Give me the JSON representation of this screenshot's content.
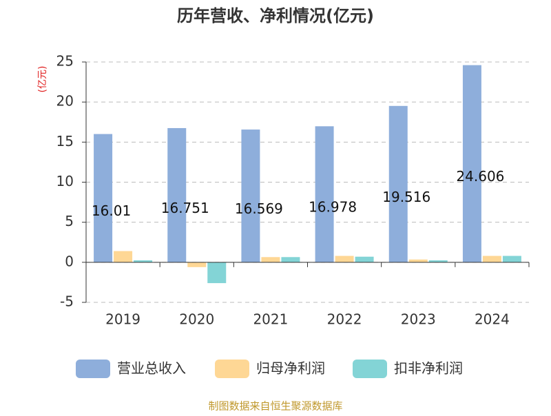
{
  "chart_data": {
    "type": "bar",
    "title": "历年营收、净利情况(亿元)",
    "y_axis_label": "(亿元)",
    "categories": [
      "2019",
      "2020",
      "2021",
      "2022",
      "2023",
      "2024"
    ],
    "series": [
      {
        "name": "营业总收入",
        "color": "#8eaedb",
        "values": [
          16.01,
          16.751,
          16.569,
          16.978,
          19.516,
          24.606
        ],
        "show_labels": true
      },
      {
        "name": "归母净利润",
        "color": "#fed795",
        "values": [
          1.4,
          -0.6,
          0.65,
          0.8,
          0.35,
          0.8
        ]
      },
      {
        "name": "扣非净利润",
        "color": "#83d4d6",
        "values": [
          0.25,
          -2.6,
          0.65,
          0.7,
          0.25,
          0.8
        ]
      }
    ],
    "ylim": [
      -5,
      25
    ],
    "yticks": [
      -5,
      0,
      5,
      10,
      15,
      20,
      25
    ],
    "grid": true,
    "source": "制图数据来自恒生聚源数据库"
  }
}
